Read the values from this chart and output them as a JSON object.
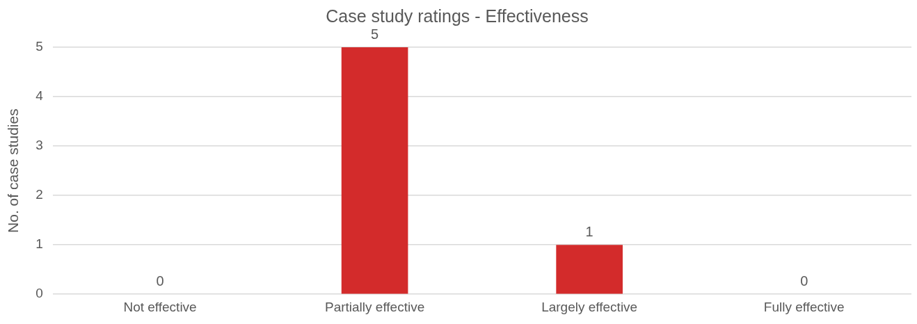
{
  "chart_data": {
    "type": "bar",
    "title": "Case study ratings - Effectiveness",
    "ylabel": "No. of case studies",
    "categories": [
      "Not effective",
      "Partially effective",
      "Largely effective",
      "Fully effective"
    ],
    "values": [
      0,
      5,
      1,
      0
    ],
    "color": "#d32b2b",
    "ylim": [
      0,
      5
    ],
    "yticks": [
      0,
      1,
      2,
      3,
      4,
      5
    ],
    "grid": "y",
    "legend": false,
    "data_labels": true
  }
}
